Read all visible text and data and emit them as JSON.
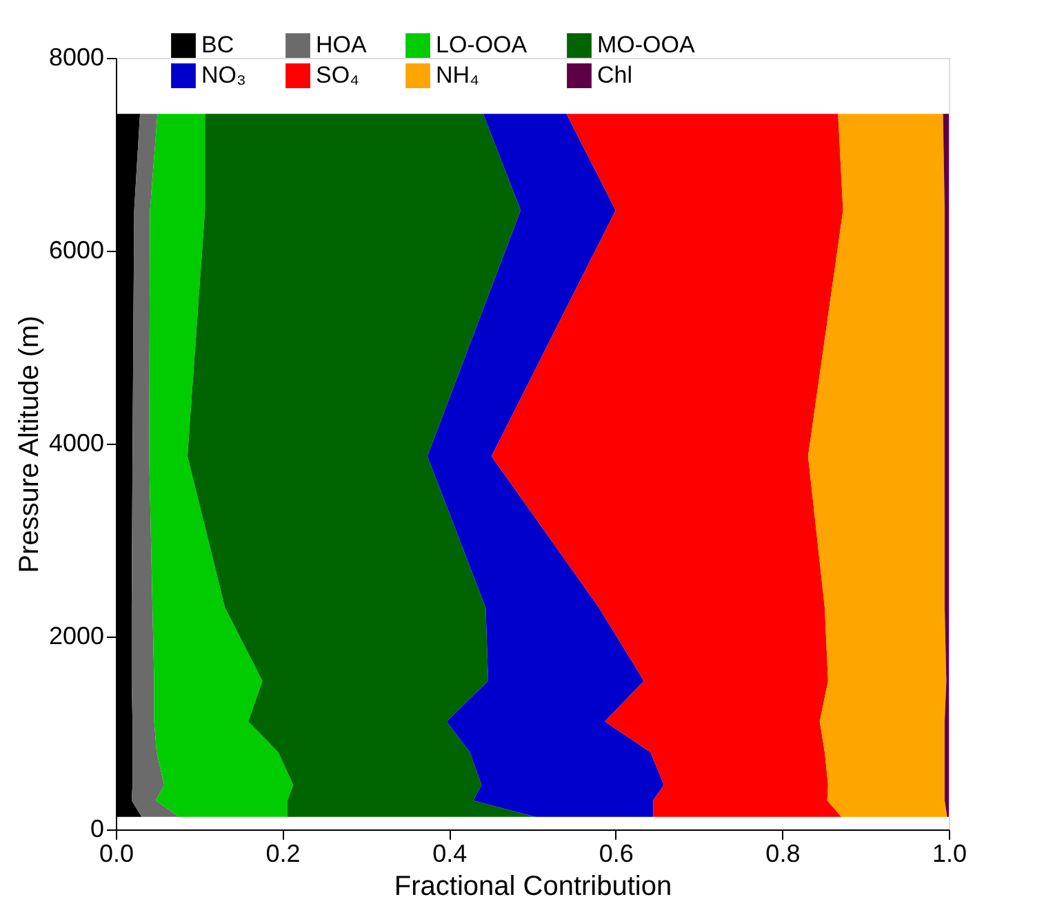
{
  "chart_data": {
    "type": "area",
    "orientation": "horizontal",
    "stacked": true,
    "xlabel": "Fractional Contribution",
    "ylabel": "Pressure Altitude (m)",
    "x": [
      130,
      300,
      460,
      800,
      1120,
      1540,
      2300,
      3870,
      6420,
      7420
    ],
    "xlim": [
      0,
      1
    ],
    "xticks": [
      {
        "value": 0,
        "label": "0.0"
      },
      0.2,
      0.4,
      0.6,
      0.8,
      {
        "value": 1,
        "label": "1.0"
      }
    ],
    "ylim": [
      0,
      8000
    ],
    "yticks": [
      0,
      2000,
      4000,
      6000,
      8000
    ],
    "grid": false,
    "legend": "top",
    "series": [
      {
        "name": "BC",
        "color": "#000000",
        "values": [
          0.031,
          0.019,
          0.02,
          0.02,
          0.02,
          0.019,
          0.019,
          0.02,
          0.022,
          0.029
        ]
      },
      {
        "name": "HOA",
        "color": "#6b6b6b",
        "values": [
          0.045,
          0.029,
          0.038,
          0.029,
          0.026,
          0.027,
          0.025,
          0.02,
          0.019,
          0.021
        ]
      },
      {
        "name": "LO-OOA",
        "color": "#00cc00",
        "values": [
          0.13,
          0.158,
          0.155,
          0.146,
          0.113,
          0.13,
          0.087,
          0.046,
          0.066,
          0.057
        ]
      },
      {
        "name": "MO-OOA",
        "color": "#006400",
        "values": [
          0.298,
          0.223,
          0.226,
          0.23,
          0.238,
          0.271,
          0.313,
          0.288,
          0.379,
          0.334
        ]
      },
      {
        "name": "NO₃",
        "color": "#0000cc",
        "values": [
          0.141,
          0.216,
          0.219,
          0.217,
          0.19,
          0.187,
          0.136,
          0.077,
          0.114,
          0.1
        ]
      },
      {
        "name": "SO₄",
        "color": "#ff0000",
        "values": [
          0.226,
          0.209,
          0.197,
          0.209,
          0.258,
          0.221,
          0.271,
          0.38,
          0.273,
          0.326
        ]
      },
      {
        "name": "NH₄",
        "color": "#ffa500",
        "values": [
          0.127,
          0.141,
          0.14,
          0.144,
          0.15,
          0.142,
          0.144,
          0.164,
          0.122,
          0.126
        ]
      },
      {
        "name": "Chl",
        "color": "#5e0048",
        "values": [
          0.002,
          0.005,
          0.005,
          0.005,
          0.005,
          0.003,
          0.005,
          0.005,
          0.005,
          0.007
        ]
      }
    ]
  }
}
